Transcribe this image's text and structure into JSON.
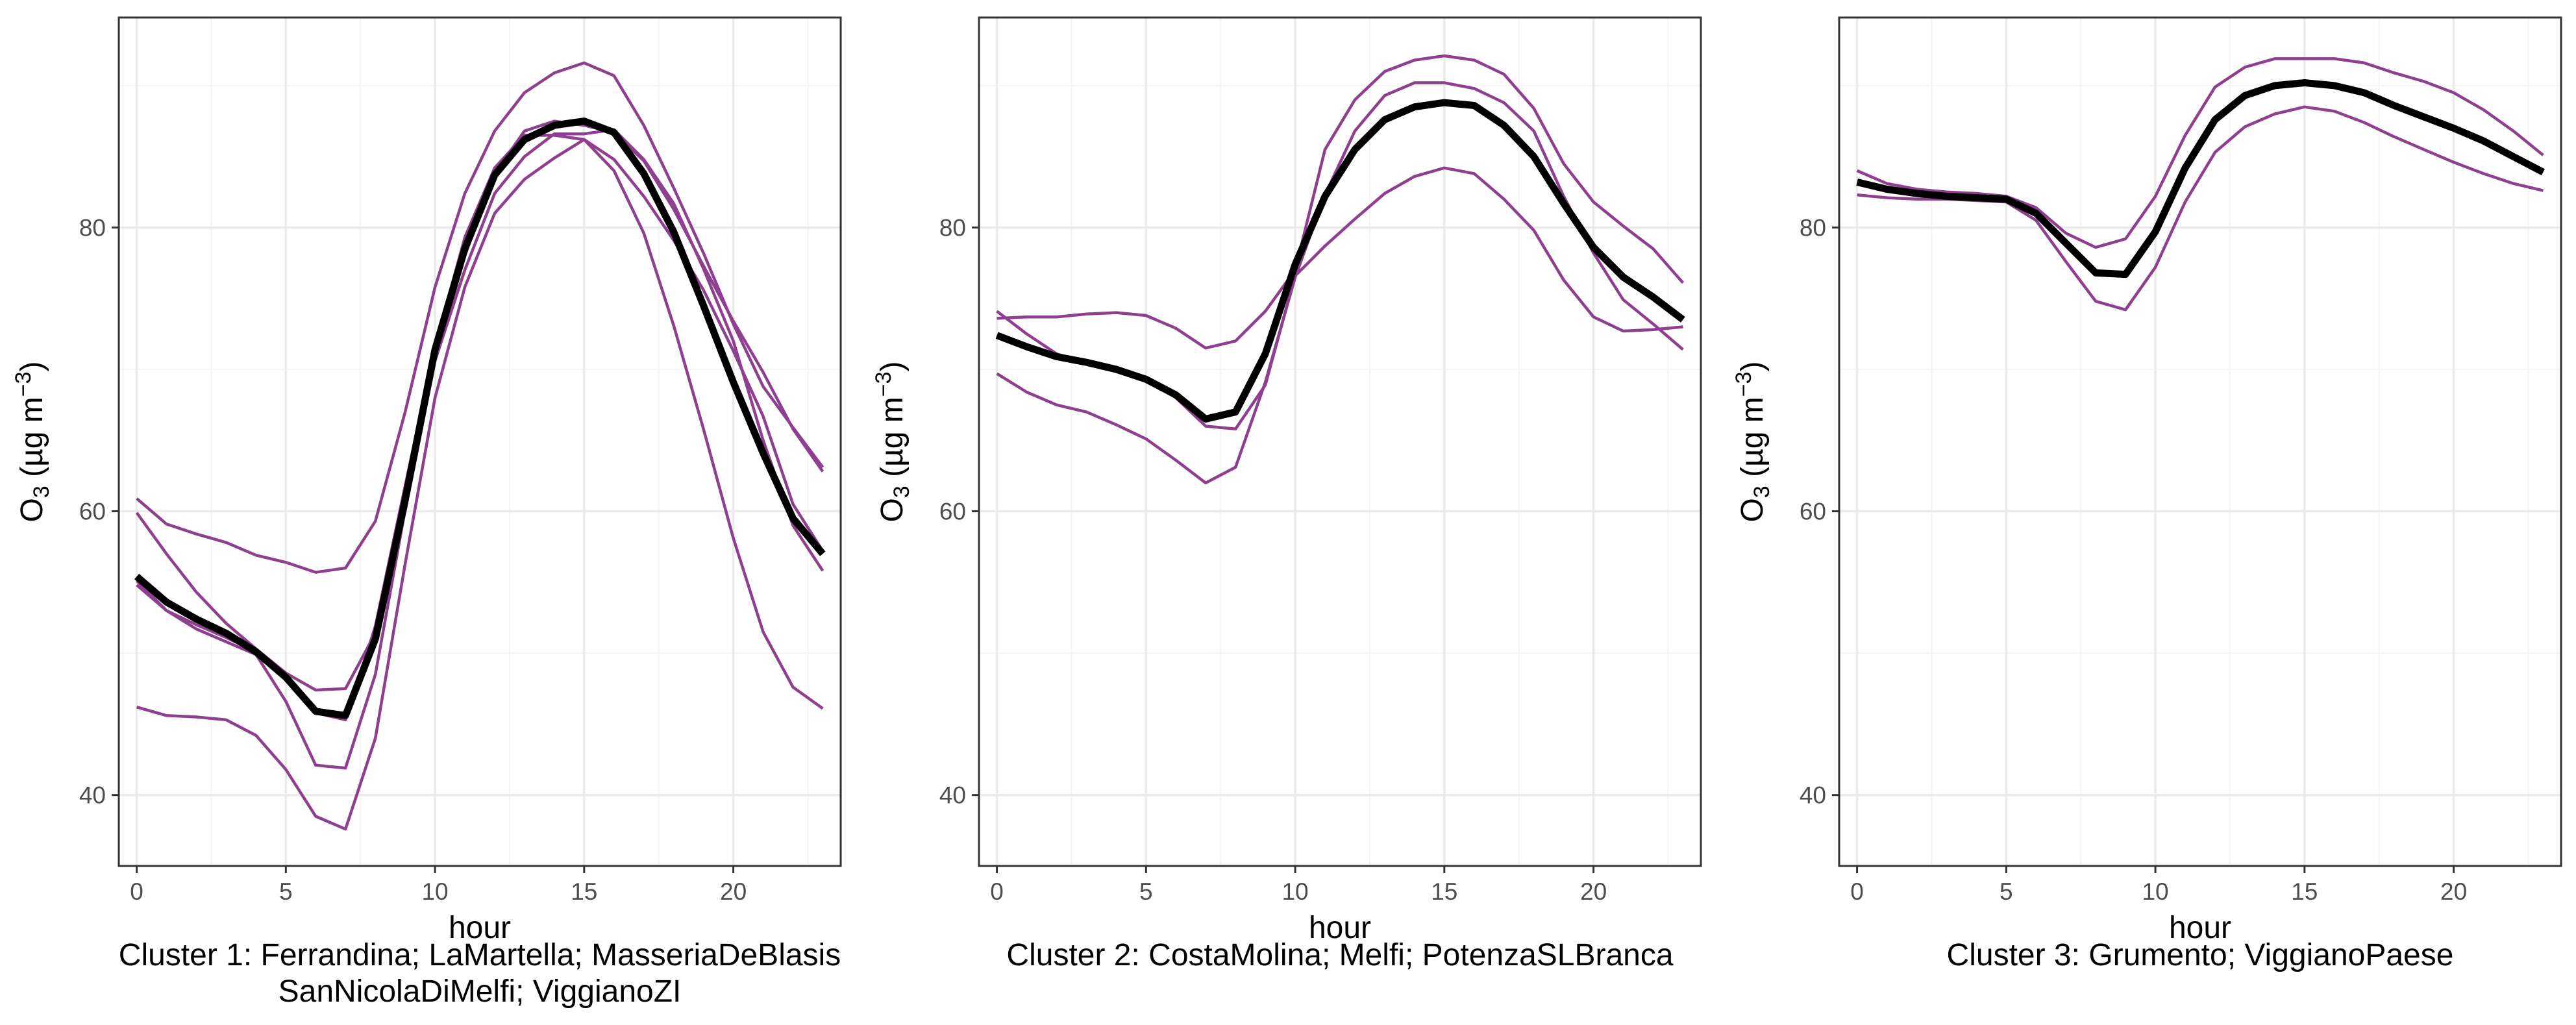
{
  "colors": {
    "member_line": "#8e3f8f",
    "mean_line": "#000000",
    "grid_major": "#ebebeb",
    "grid_minor": "#f4f4f4",
    "panel_border": "#333333"
  },
  "chart_data": [
    {
      "type": "line",
      "xlabel": "hour",
      "ylabel": "O3 (µg m-3)",
      "ylabel_parts": {
        "main": "O",
        "sub": "3",
        "unit": " (µg m",
        "sup": "−3",
        "close": ")"
      },
      "x_ticks": [
        0,
        5,
        10,
        15,
        20
      ],
      "x_tick_labels": [
        "0",
        "5",
        "10",
        "15",
        "20"
      ],
      "y_ticks": [
        40,
        60,
        80
      ],
      "y_tick_labels": [
        "40",
        "60",
        "80"
      ],
      "xlim": [
        -0.6,
        23.6
      ],
      "ylim": [
        35,
        94.8
      ],
      "caption_lines": [
        "Cluster 1: Ferrandina; LaMartella; MasseriaDeBlasis",
        "SanNicolaDiMelfi; ViggianoZI"
      ],
      "x": [
        0,
        1,
        2,
        3,
        4,
        5,
        6,
        7,
        8,
        9,
        10,
        11,
        12,
        13,
        14,
        15,
        16,
        17,
        18,
        19,
        20,
        21,
        22,
        23
      ],
      "series": [
        {
          "name": "Ferrandina",
          "role": "station",
          "values": [
            60.9,
            59.1,
            58.4,
            57.8,
            56.9,
            56.4,
            55.7,
            56.0,
            59.3,
            67.0,
            75.8,
            82.4,
            86.8,
            89.5,
            90.9,
            91.6,
            90.7,
            87.2,
            82.8,
            78.2,
            73.2,
            68.8,
            65.9,
            63.1
          ]
        },
        {
          "name": "LaMartella",
          "role": "station",
          "values": [
            59.9,
            57.0,
            54.3,
            52.1,
            50.3,
            48.6,
            47.4,
            47.5,
            51.4,
            60.0,
            70.6,
            78.0,
            83.8,
            86.8,
            87.5,
            87.2,
            86.7,
            84.7,
            81.3,
            77.3,
            73.4,
            69.8,
            65.8,
            62.8
          ]
        },
        {
          "name": "MasseriaDeBlasis",
          "role": "station",
          "values": [
            55.1,
            53.0,
            51.7,
            50.8,
            49.9,
            46.6,
            42.1,
            41.9,
            48.5,
            60.1,
            70.6,
            77.0,
            82.4,
            85.0,
            86.6,
            86.6,
            86.9,
            84.8,
            81.7,
            77.1,
            72.0,
            65.0,
            59.0,
            55.8
          ]
        },
        {
          "name": "SanNicolaDiMelfi",
          "role": "station",
          "values": [
            46.2,
            45.6,
            45.5,
            45.3,
            44.2,
            41.8,
            38.5,
            37.6,
            44.0,
            56.3,
            68.0,
            75.8,
            81.0,
            83.4,
            84.9,
            86.2,
            84.0,
            79.6,
            73.1,
            65.8,
            58.1,
            51.5,
            47.6,
            46.1
          ]
        },
        {
          "name": "ViggianoZI",
          "role": "station",
          "values": [
            54.8,
            53.0,
            52.0,
            51.1,
            50.1,
            48.6,
            45.8,
            45.3,
            51.9,
            61.8,
            71.6,
            79.3,
            84.2,
            86.5,
            86.5,
            86.2,
            84.8,
            82.2,
            79.1,
            75.6,
            71.3,
            66.7,
            60.5,
            57.2
          ]
        },
        {
          "name": "Cluster mean",
          "role": "mean",
          "values": [
            55.4,
            53.6,
            52.4,
            51.4,
            50.1,
            48.3,
            45.9,
            45.6,
            51.0,
            60.8,
            71.4,
            78.5,
            83.7,
            86.2,
            87.2,
            87.5,
            86.7,
            83.8,
            79.7,
            74.5,
            69.1,
            64.1,
            59.5,
            57.0
          ]
        }
      ]
    },
    {
      "type": "line",
      "xlabel": "hour",
      "ylabel": "O3 (µg m-3)",
      "ylabel_parts": {
        "main": "O",
        "sub": "3",
        "unit": " (µg m",
        "sup": "−3",
        "close": ")"
      },
      "x_ticks": [
        0,
        5,
        10,
        15,
        20
      ],
      "x_tick_labels": [
        "0",
        "5",
        "10",
        "15",
        "20"
      ],
      "y_ticks": [
        40,
        60,
        80
      ],
      "y_tick_labels": [
        "40",
        "60",
        "80"
      ],
      "xlim": [
        -0.6,
        23.6
      ],
      "ylim": [
        35,
        94.8
      ],
      "caption_lines": [
        "Cluster 2: CostaMolina; Melfi; PotenzaSLBranca"
      ],
      "x": [
        0,
        1,
        2,
        3,
        4,
        5,
        6,
        7,
        8,
        9,
        10,
        11,
        12,
        13,
        14,
        15,
        16,
        17,
        18,
        19,
        20,
        21,
        22,
        23
      ],
      "series": [
        {
          "name": "CostaMolina",
          "role": "station",
          "values": [
            73.6,
            73.7,
            73.7,
            73.9,
            74.0,
            73.8,
            72.9,
            71.5,
            72.0,
            74.1,
            77.0,
            85.5,
            89.0,
            91.0,
            91.8,
            92.1,
            91.8,
            90.8,
            88.4,
            84.5,
            81.8,
            80.1,
            78.5,
            76.1
          ]
        },
        {
          "name": "Melfi",
          "role": "station",
          "values": [
            69.7,
            68.4,
            67.5,
            67.0,
            66.1,
            65.1,
            63.6,
            62.0,
            63.1,
            69.1,
            76.5,
            82.3,
            86.8,
            89.3,
            90.2,
            90.2,
            89.8,
            88.8,
            86.8,
            82.2,
            78.2,
            74.9,
            73.2,
            71.4
          ]
        },
        {
          "name": "PotenzaSLBranca",
          "role": "station",
          "values": [
            74.1,
            72.5,
            71.1,
            70.4,
            70.0,
            69.4,
            68.0,
            66.0,
            65.8,
            68.9,
            76.6,
            78.7,
            80.6,
            82.4,
            83.6,
            84.2,
            83.8,
            82.0,
            79.8,
            76.3,
            73.7,
            72.7,
            72.8,
            73.0
          ]
        },
        {
          "name": "Cluster mean",
          "role": "mean",
          "values": [
            72.4,
            71.6,
            70.9,
            70.5,
            70.0,
            69.3,
            68.2,
            66.5,
            67.0,
            71.1,
            77.4,
            82.2,
            85.5,
            87.6,
            88.5,
            88.8,
            88.6,
            87.2,
            85.0,
            81.7,
            78.6,
            76.5,
            75.1,
            73.5
          ]
        }
      ]
    },
    {
      "type": "line",
      "xlabel": "hour",
      "ylabel": "O3 (µg m-3)",
      "ylabel_parts": {
        "main": "O",
        "sub": "3",
        "unit": " (µg m",
        "sup": "−3",
        "close": ")"
      },
      "x_ticks": [
        0,
        5,
        10,
        15,
        20
      ],
      "x_tick_labels": [
        "0",
        "5",
        "10",
        "15",
        "20"
      ],
      "y_ticks": [
        40,
        60,
        80
      ],
      "y_tick_labels": [
        "40",
        "60",
        "80"
      ],
      "xlim": [
        -0.6,
        23.6
      ],
      "ylim": [
        35,
        94.8
      ],
      "caption_lines": [
        "Cluster 3: Grumento; ViggianoPaese"
      ],
      "x": [
        0,
        1,
        2,
        3,
        4,
        5,
        6,
        7,
        8,
        9,
        10,
        11,
        12,
        13,
        14,
        15,
        16,
        17,
        18,
        19,
        20,
        21,
        22,
        23
      ],
      "series": [
        {
          "name": "Grumento",
          "role": "station",
          "values": [
            84.0,
            83.1,
            82.7,
            82.5,
            82.4,
            82.2,
            81.4,
            79.6,
            78.6,
            79.2,
            82.2,
            86.5,
            89.9,
            91.3,
            91.9,
            91.9,
            91.9,
            91.6,
            90.9,
            90.3,
            89.5,
            88.3,
            86.8,
            85.1
          ]
        },
        {
          "name": "ViggianoPaese",
          "role": "station",
          "values": [
            82.3,
            82.1,
            82.0,
            82.0,
            81.9,
            81.8,
            80.5,
            77.6,
            74.8,
            74.2,
            77.2,
            81.8,
            85.3,
            87.1,
            88.0,
            88.5,
            88.2,
            87.4,
            86.4,
            85.5,
            84.6,
            83.8,
            83.1,
            82.6
          ]
        },
        {
          "name": "Cluster mean",
          "role": "mean",
          "values": [
            83.2,
            82.7,
            82.4,
            82.2,
            82.1,
            82.0,
            81.0,
            78.9,
            76.8,
            76.7,
            79.7,
            84.2,
            87.6,
            89.3,
            90.0,
            90.2,
            90.0,
            89.5,
            88.6,
            87.8,
            87.0,
            86.1,
            85.0,
            83.9
          ]
        }
      ]
    }
  ]
}
